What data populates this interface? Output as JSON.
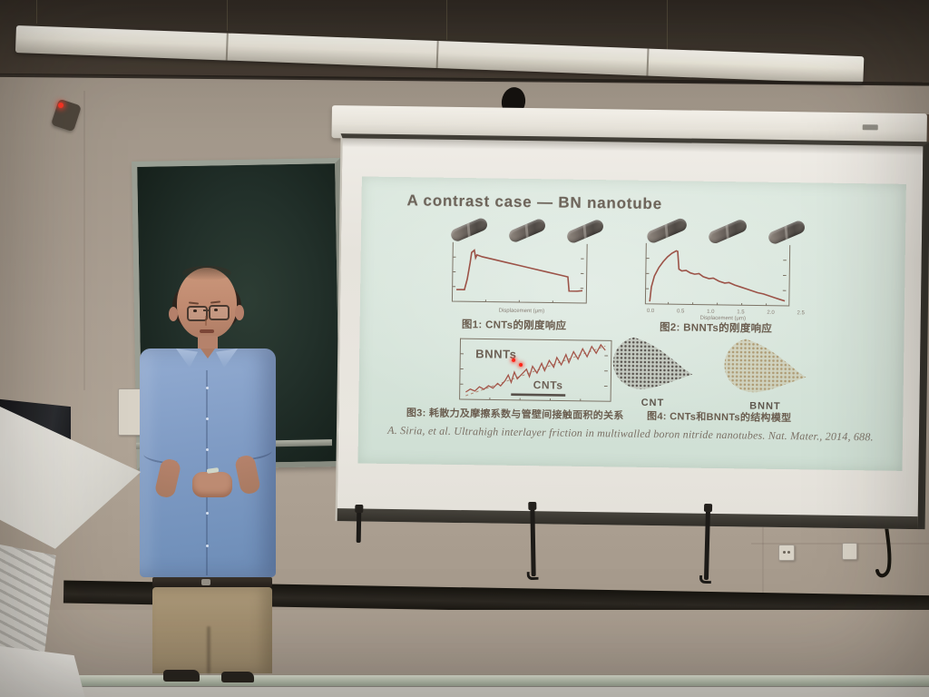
{
  "slide": {
    "title": "A contrast case — BN nanotube",
    "figures": [
      {
        "caption": "图1: CNTs的刚度响应"
      },
      {
        "caption": "图2: BNNTs的刚度响应"
      },
      {
        "caption": "图3: 耗散力及摩擦系数与管壁间接触面积的关系"
      },
      {
        "caption": "图4: CNTs和BNNTs的结构模型",
        "labels": {
          "cnt": "CNT",
          "bnnt": "BNNT"
        }
      }
    ],
    "citation": "A. Siria, et al. Ultrahigh interlayer friction in multiwalled boron nitride nanotubes. Nat. Mater., 2014, 688."
  },
  "chart_data": [
    {
      "type": "line",
      "figure": "图1",
      "subject": "CNTs stiffness response",
      "xlabel": "Displacement (μm)",
      "series": [
        {
          "name": "CNT force trace",
          "points": [
            [
              3,
              80
            ],
            [
              9,
              80
            ],
            [
              11,
              62
            ],
            [
              13,
              34
            ],
            [
              14,
              17
            ],
            [
              16,
              13
            ],
            [
              17,
              26
            ],
            [
              18,
              21
            ],
            [
              22,
              24
            ],
            [
              30,
              28
            ],
            [
              40,
              33
            ],
            [
              50,
              38
            ],
            [
              60,
              43
            ],
            [
              70,
              48
            ],
            [
              80,
              53
            ],
            [
              86,
              56
            ],
            [
              87,
              80
            ],
            [
              93,
              80
            ],
            [
              97,
              79
            ]
          ]
        }
      ],
      "shape_note": "sharp rise to peak, slow linear decay, drop back to baseline"
    },
    {
      "type": "line",
      "figure": "图2",
      "subject": "BNNTs stiffness response",
      "xlabel": "Displacement (μm)",
      "xticks": [
        "0.0",
        "0.5",
        "1.0",
        "1.5",
        "2.0",
        "2.5"
      ],
      "series": [
        {
          "name": "BNNT force trace",
          "points": [
            [
              3,
              96
            ],
            [
              4,
              72
            ],
            [
              6,
              54
            ],
            [
              9,
              40
            ],
            [
              12,
              30
            ],
            [
              15,
              22
            ],
            [
              18,
              16
            ],
            [
              21,
              12
            ],
            [
              22,
              13
            ],
            [
              23,
              42
            ],
            [
              25,
              45
            ],
            [
              28,
              44
            ],
            [
              31,
              48
            ],
            [
              34,
              50
            ],
            [
              37,
              49
            ],
            [
              40,
              54
            ],
            [
              44,
              57
            ],
            [
              47,
              56
            ],
            [
              51,
              61
            ],
            [
              55,
              64
            ],
            [
              58,
              63
            ],
            [
              62,
              67
            ],
            [
              66,
              70
            ],
            [
              70,
              73
            ],
            [
              74,
              76
            ],
            [
              78,
              79
            ],
            [
              82,
              81
            ],
            [
              86,
              84
            ],
            [
              90,
              87
            ],
            [
              94,
              90
            ],
            [
              97,
              92
            ]
          ]
        }
      ],
      "shape_note": "smooth rise to peak, sharp drop, stepped jagged decay"
    },
    {
      "type": "scatter",
      "figure": "图3",
      "series": [
        {
          "name": "BNNTs",
          "points": [
            [
              4,
              88
            ],
            [
              7,
              83
            ],
            [
              10,
              86
            ],
            [
              13,
              79
            ],
            [
              16,
              83
            ],
            [
              19,
              77
            ],
            [
              22,
              81
            ],
            [
              25,
              73
            ],
            [
              27,
              77
            ],
            [
              30,
              68
            ],
            [
              32,
              59
            ],
            [
              34,
              71
            ],
            [
              36,
              54
            ],
            [
              38,
              65
            ],
            [
              41,
              57
            ],
            [
              44,
              49
            ],
            [
              46,
              61
            ],
            [
              48,
              44
            ],
            [
              51,
              55
            ],
            [
              54,
              39
            ],
            [
              56,
              51
            ],
            [
              59,
              34
            ],
            [
              62,
              45
            ],
            [
              64,
              29
            ],
            [
              67,
              41
            ],
            [
              70,
              24
            ],
            [
              72,
              37
            ],
            [
              75,
              19
            ],
            [
              78,
              31
            ],
            [
              81,
              14
            ],
            [
              84,
              27
            ],
            [
              87,
              10
            ],
            [
              90,
              21
            ],
            [
              93,
              7
            ],
            [
              96,
              16
            ]
          ]
        },
        {
          "name": "CNTs",
          "points": [
            [
              34,
              91
            ],
            [
              70,
              91
            ]
          ]
        },
        {
          "name": "trend",
          "points": [
            [
              4,
              94
            ],
            [
              96,
              9
            ]
          ]
        }
      ]
    }
  ],
  "colors": {
    "slide_bg": "#d9e6dc",
    "slide_title": "#6e655b",
    "trace_red": "#9c5348",
    "chalkboard_green": "#1d2a23",
    "shirt_blue": "#7f9bc4",
    "pants_khaki": "#a39072",
    "wall_tan": "#a99d8f"
  }
}
